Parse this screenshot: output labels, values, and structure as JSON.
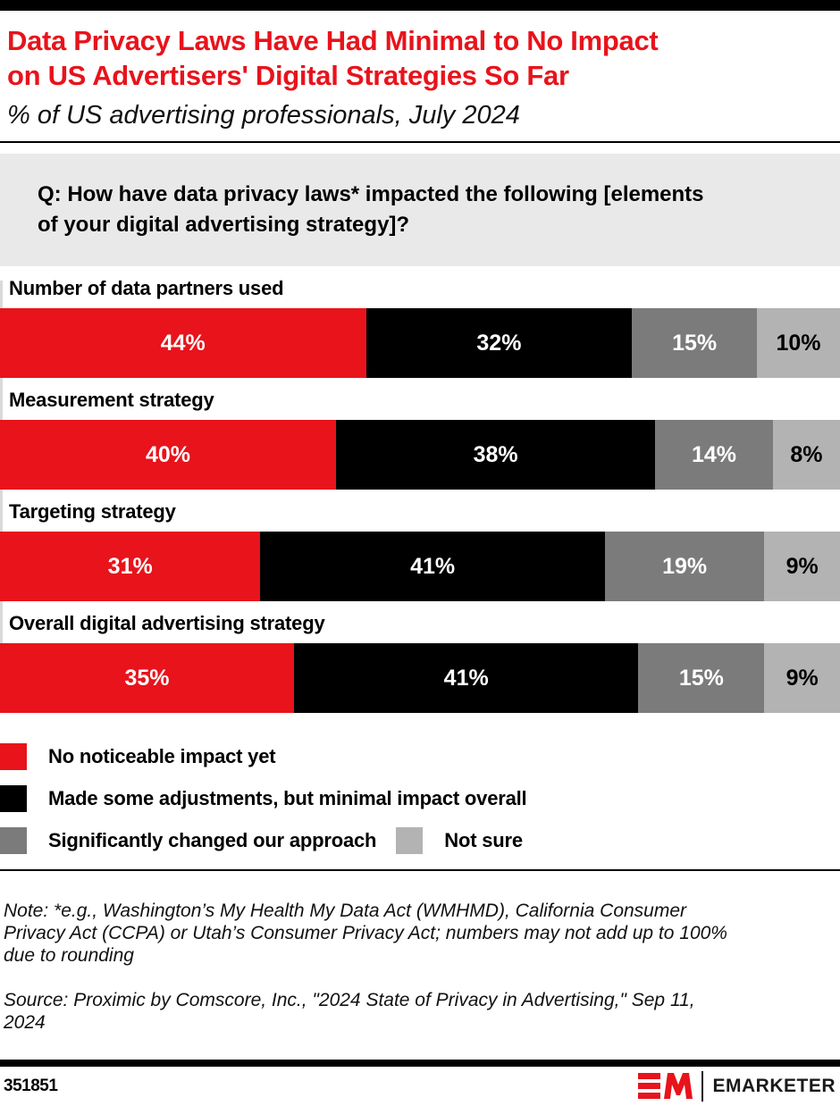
{
  "header": {
    "title": "Data Privacy Laws Have Had Minimal to No Impact\non US Advertisers' Digital Strategies So Far",
    "subtitle": "% of US advertising professionals, July 2024"
  },
  "question": "Q: How have data privacy laws* impacted the following [elements\nof your digital advertising strategy]?",
  "chart_data": {
    "type": "bar",
    "stacked": true,
    "orientation": "horizontal",
    "unit": "%",
    "xlim": [
      0,
      100
    ],
    "grid": false,
    "legend_position": "bottom",
    "categories": [
      "Number of data partners used",
      "Measurement strategy",
      "Targeting strategy",
      "Overall digital advertising strategy"
    ],
    "series": [
      {
        "name": "No noticeable impact yet",
        "color": "#e8131b",
        "label_color": "#ffffff",
        "values": [
          44,
          40,
          31,
          35
        ]
      },
      {
        "name": "Made some adjustments, but minimal impact overall",
        "color": "#000000",
        "label_color": "#ffffff",
        "values": [
          32,
          38,
          41,
          41
        ]
      },
      {
        "name": "Significantly changed our approach",
        "color": "#7b7b7b",
        "label_color": "#ffffff",
        "values": [
          15,
          14,
          19,
          15
        ]
      },
      {
        "name": "Not sure",
        "color": "#b3b3b3",
        "label_color": "#000000",
        "values": [
          10,
          8,
          9,
          9
        ]
      }
    ],
    "title": "Data Privacy Laws Have Had Minimal to No Impact on US Advertisers' Digital Strategies So Far",
    "subtitle": "% of US advertising professionals, July 2024"
  },
  "notes": {
    "note": "Note: *e.g., Washington’s My Health My Data Act (WMHMD), California Consumer\nPrivacy Act (CCPA) or Utah’s Consumer Privacy Act; numbers may not add up to 100%\ndue to rounding",
    "source": "Source: Proximic by Comscore, Inc., \"2024 State of Privacy in Advertising,\" Sep 11,\n2024"
  },
  "footer": {
    "chart_id": "351851",
    "brand": "EMARKETER"
  },
  "colors": {
    "accent_red": "#e8131b",
    "question_bg": "#e9e9e9",
    "dark_gray": "#7b7b7b",
    "light_gray": "#b3b3b3"
  }
}
